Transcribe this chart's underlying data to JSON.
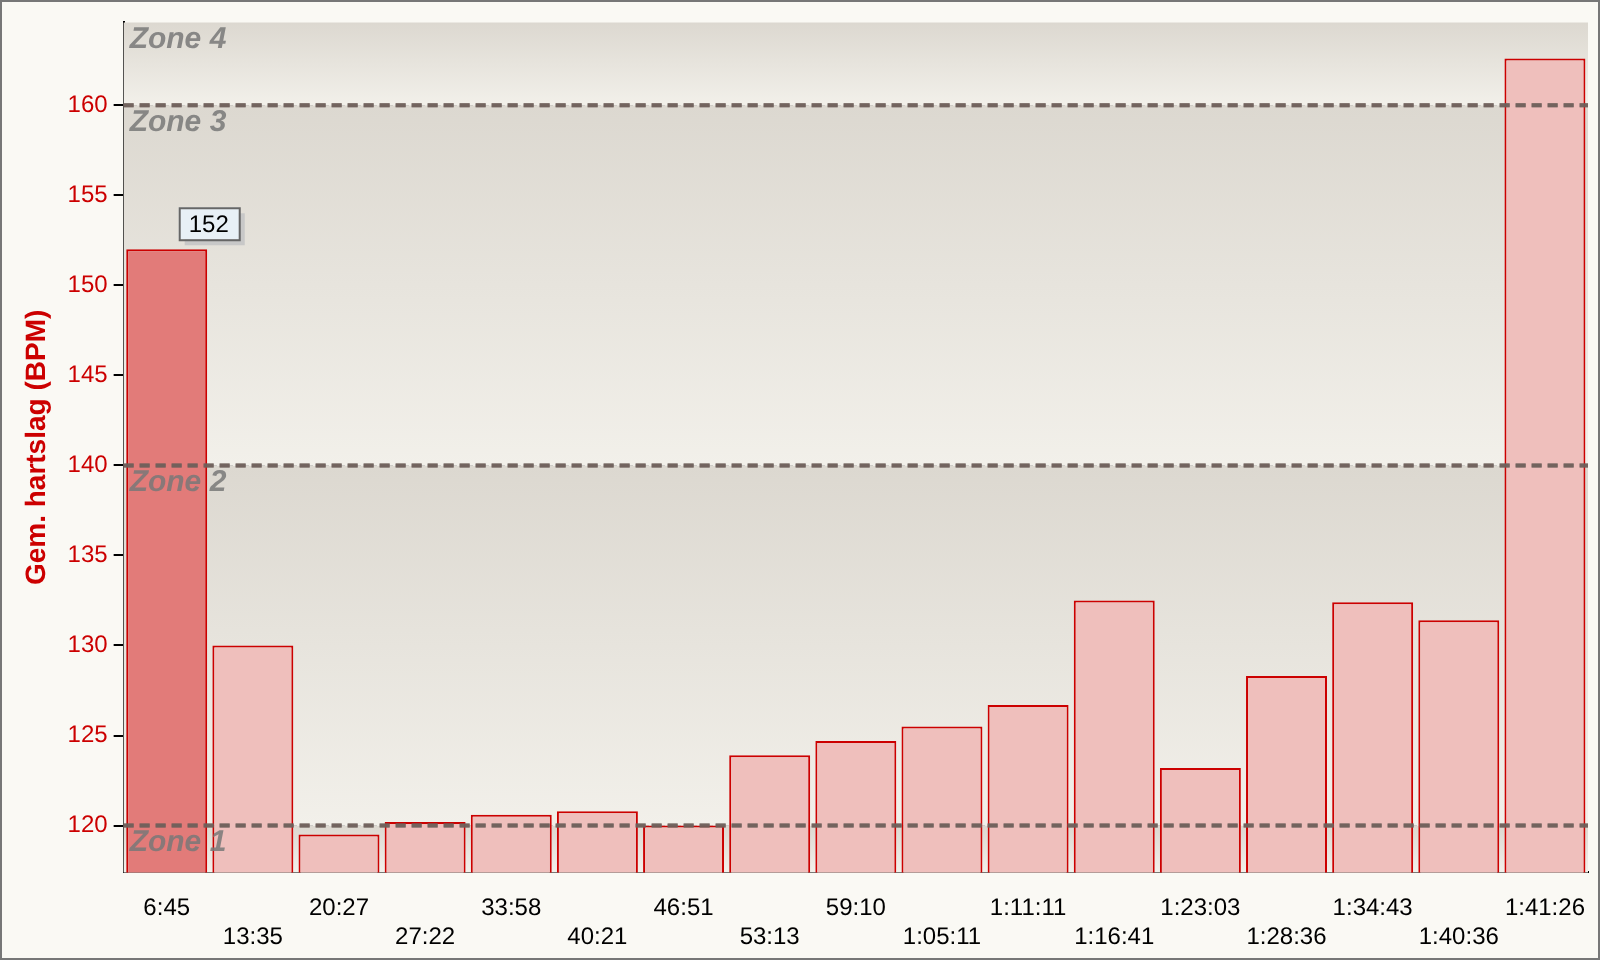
{
  "chart_data": {
    "type": "bar",
    "ylabel": "Gem. hartslag (BPM)",
    "categories": [
      "6:45",
      "13:35",
      "20:27",
      "27:22",
      "33:58",
      "40:21",
      "46:51",
      "53:13",
      "59:10",
      "1:05:11",
      "1:11:11",
      "1:16:41",
      "1:23:03",
      "1:28:36",
      "1:34:43",
      "1:40:36",
      "1:41:26"
    ],
    "values": [
      152,
      130,
      119.5,
      120.2,
      120.6,
      120.8,
      120,
      123.9,
      124.7,
      125.5,
      126.7,
      132.5,
      123.2,
      128.3,
      132.4,
      131.4,
      162.6
    ],
    "value_labels": [
      "152",
      null,
      null,
      null,
      null,
      null,
      null,
      null,
      null,
      null,
      null,
      null,
      null,
      null,
      null,
      null,
      null
    ],
    "colors": [
      "#e27b79",
      "#efbfbc",
      "#efbfbc",
      "#efbfbc",
      "#efbfbc",
      "#efbfbc",
      "#efbfbc",
      "#efbfbc",
      "#efbfbc",
      "#efbfbc",
      "#efbfbc",
      "#efbfbc",
      "#efbfbc",
      "#efbfbc",
      "#efbfbc",
      "#efbfbc",
      "#efbfbc"
    ],
    "ylim": [
      117.4,
      164.6
    ],
    "yticks": [
      120,
      125,
      130,
      135,
      140,
      145,
      150,
      155,
      160
    ],
    "bands": [
      {
        "axis": "y",
        "from": 117.4,
        "to": 120,
        "label": "Zone 1",
        "color": "#dcd8d0"
      },
      {
        "axis": "y",
        "from": 120,
        "to": 140,
        "label": "Zone 2",
        "color": "#dcd8d0"
      },
      {
        "axis": "y",
        "from": 140,
        "to": 160,
        "label": "Zone 3",
        "color": "#dcd8d0"
      },
      {
        "axis": "y",
        "from": 160,
        "to": 164.6,
        "label": "Zone 4",
        "color": "#dcd8d0"
      }
    ],
    "grid": "y",
    "legend": false
  }
}
